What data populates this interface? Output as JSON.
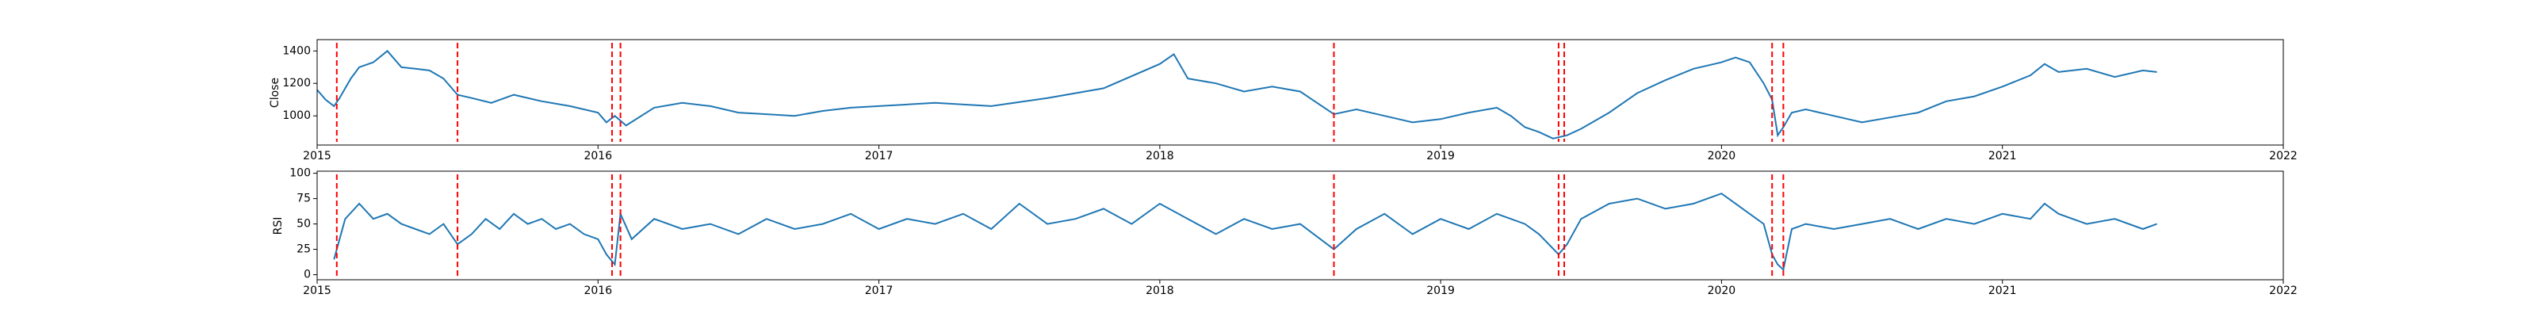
{
  "chart_data": [
    {
      "type": "line",
      "title": "",
      "xlabel": "",
      "ylabel": "Close",
      "xlim": [
        2015.0,
        2022.0
      ],
      "ylim": [
        820,
        1470
      ],
      "x_ticks": [
        "2015",
        "2016",
        "2017",
        "2018",
        "2019",
        "2020",
        "2021",
        "2022"
      ],
      "y_ticks": [
        1000,
        1200,
        1400
      ],
      "grid": false,
      "line_color": "#1f77b4",
      "vline_color": "#ff0000",
      "vlines": [
        2015.07,
        2015.5,
        2016.05,
        2016.08,
        2018.62,
        2019.42,
        2019.44,
        2020.18,
        2020.22
      ],
      "series": [
        {
          "x": [
            2015.0,
            2015.03,
            2015.06,
            2015.08,
            2015.12,
            2015.15,
            2015.2,
            2015.25,
            2015.3,
            2015.35,
            2015.4,
            2015.45,
            2015.5,
            2015.55,
            2015.62,
            2015.7,
            2015.8,
            2015.9,
            2016.0,
            2016.03,
            2016.06,
            2016.1,
            2016.2,
            2016.3,
            2016.4,
            2016.5,
            2016.6,
            2016.7,
            2016.8,
            2016.9,
            2017.0,
            2017.2,
            2017.4,
            2017.6,
            2017.8,
            2018.0,
            2018.05,
            2018.1,
            2018.2,
            2018.3,
            2018.4,
            2018.5,
            2018.62,
            2018.7,
            2018.8,
            2018.9,
            2019.0,
            2019.1,
            2019.2,
            2019.25,
            2019.3,
            2019.35,
            2019.4,
            2019.45,
            2019.5,
            2019.6,
            2019.7,
            2019.8,
            2019.9,
            2020.0,
            2020.05,
            2020.1,
            2020.15,
            2020.18,
            2020.2,
            2020.22,
            2020.25,
            2020.3,
            2020.4,
            2020.5,
            2020.6,
            2020.7,
            2020.8,
            2020.9,
            2021.0,
            2021.1,
            2021.15,
            2021.2,
            2021.3,
            2021.4,
            2021.5,
            2021.55
          ],
          "y": [
            1160,
            1100,
            1060,
            1110,
            1230,
            1300,
            1330,
            1400,
            1300,
            1290,
            1280,
            1230,
            1130,
            1110,
            1080,
            1130,
            1090,
            1060,
            1020,
            960,
            1000,
            940,
            1050,
            1080,
            1060,
            1020,
            1010,
            1000,
            1030,
            1050,
            1060,
            1080,
            1060,
            1110,
            1170,
            1320,
            1380,
            1230,
            1200,
            1150,
            1180,
            1150,
            1010,
            1040,
            1000,
            960,
            980,
            1020,
            1050,
            1000,
            930,
            900,
            860,
            880,
            920,
            1020,
            1140,
            1220,
            1290,
            1330,
            1360,
            1330,
            1200,
            1100,
            880,
            930,
            1020,
            1040,
            1000,
            960,
            990,
            1020,
            1090,
            1120,
            1180,
            1250,
            1320,
            1270,
            1290,
            1240,
            1280,
            1270
          ]
        }
      ]
    },
    {
      "type": "line",
      "title": "",
      "xlabel": "",
      "ylabel": "RSI",
      "xlim": [
        2015.0,
        2022.0
      ],
      "ylim": [
        -5,
        102
      ],
      "x_ticks": [
        "2015",
        "2016",
        "2017",
        "2018",
        "2019",
        "2020",
        "2021",
        "2022"
      ],
      "y_ticks": [
        0,
        25,
        50,
        75,
        100
      ],
      "grid": false,
      "line_color": "#1f77b4",
      "vline_color": "#ff0000",
      "vlines": [
        2015.07,
        2015.5,
        2016.05,
        2016.08,
        2018.62,
        2019.42,
        2019.44,
        2020.18,
        2020.22
      ],
      "series": [
        {
          "x": [
            2015.06,
            2015.08,
            2015.1,
            2015.15,
            2015.2,
            2015.25,
            2015.3,
            2015.35,
            2015.4,
            2015.45,
            2015.5,
            2015.55,
            2015.6,
            2015.65,
            2015.7,
            2015.75,
            2015.8,
            2015.85,
            2015.9,
            2015.95,
            2016.0,
            2016.03,
            2016.06,
            2016.08,
            2016.12,
            2016.2,
            2016.3,
            2016.4,
            2016.5,
            2016.6,
            2016.7,
            2016.8,
            2016.9,
            2017.0,
            2017.1,
            2017.2,
            2017.3,
            2017.4,
            2017.5,
            2017.6,
            2017.7,
            2017.8,
            2017.9,
            2018.0,
            2018.1,
            2018.2,
            2018.3,
            2018.4,
            2018.5,
            2018.62,
            2018.7,
            2018.8,
            2018.9,
            2019.0,
            2019.1,
            2019.2,
            2019.3,
            2019.35,
            2019.42,
            2019.45,
            2019.5,
            2019.6,
            2019.7,
            2019.8,
            2019.9,
            2020.0,
            2020.1,
            2020.15,
            2020.18,
            2020.2,
            2020.22,
            2020.25,
            2020.3,
            2020.4,
            2020.5,
            2020.6,
            2020.7,
            2020.8,
            2020.9,
            2021.0,
            2021.1,
            2021.15,
            2021.2,
            2021.3,
            2021.4,
            2021.5,
            2021.55
          ],
          "y": [
            15,
            35,
            55,
            70,
            55,
            60,
            50,
            45,
            40,
            50,
            30,
            40,
            55,
            45,
            60,
            50,
            55,
            45,
            50,
            40,
            35,
            20,
            10,
            60,
            35,
            55,
            45,
            50,
            40,
            55,
            45,
            50,
            60,
            45,
            55,
            50,
            60,
            45,
            70,
            50,
            55,
            65,
            50,
            70,
            55,
            40,
            55,
            45,
            50,
            25,
            45,
            60,
            40,
            55,
            45,
            60,
            50,
            40,
            20,
            30,
            55,
            70,
            75,
            65,
            70,
            80,
            60,
            50,
            20,
            10,
            5,
            45,
            50,
            45,
            50,
            55,
            45,
            55,
            50,
            60,
            55,
            70,
            60,
            50,
            55,
            45,
            50
          ]
        }
      ]
    }
  ]
}
